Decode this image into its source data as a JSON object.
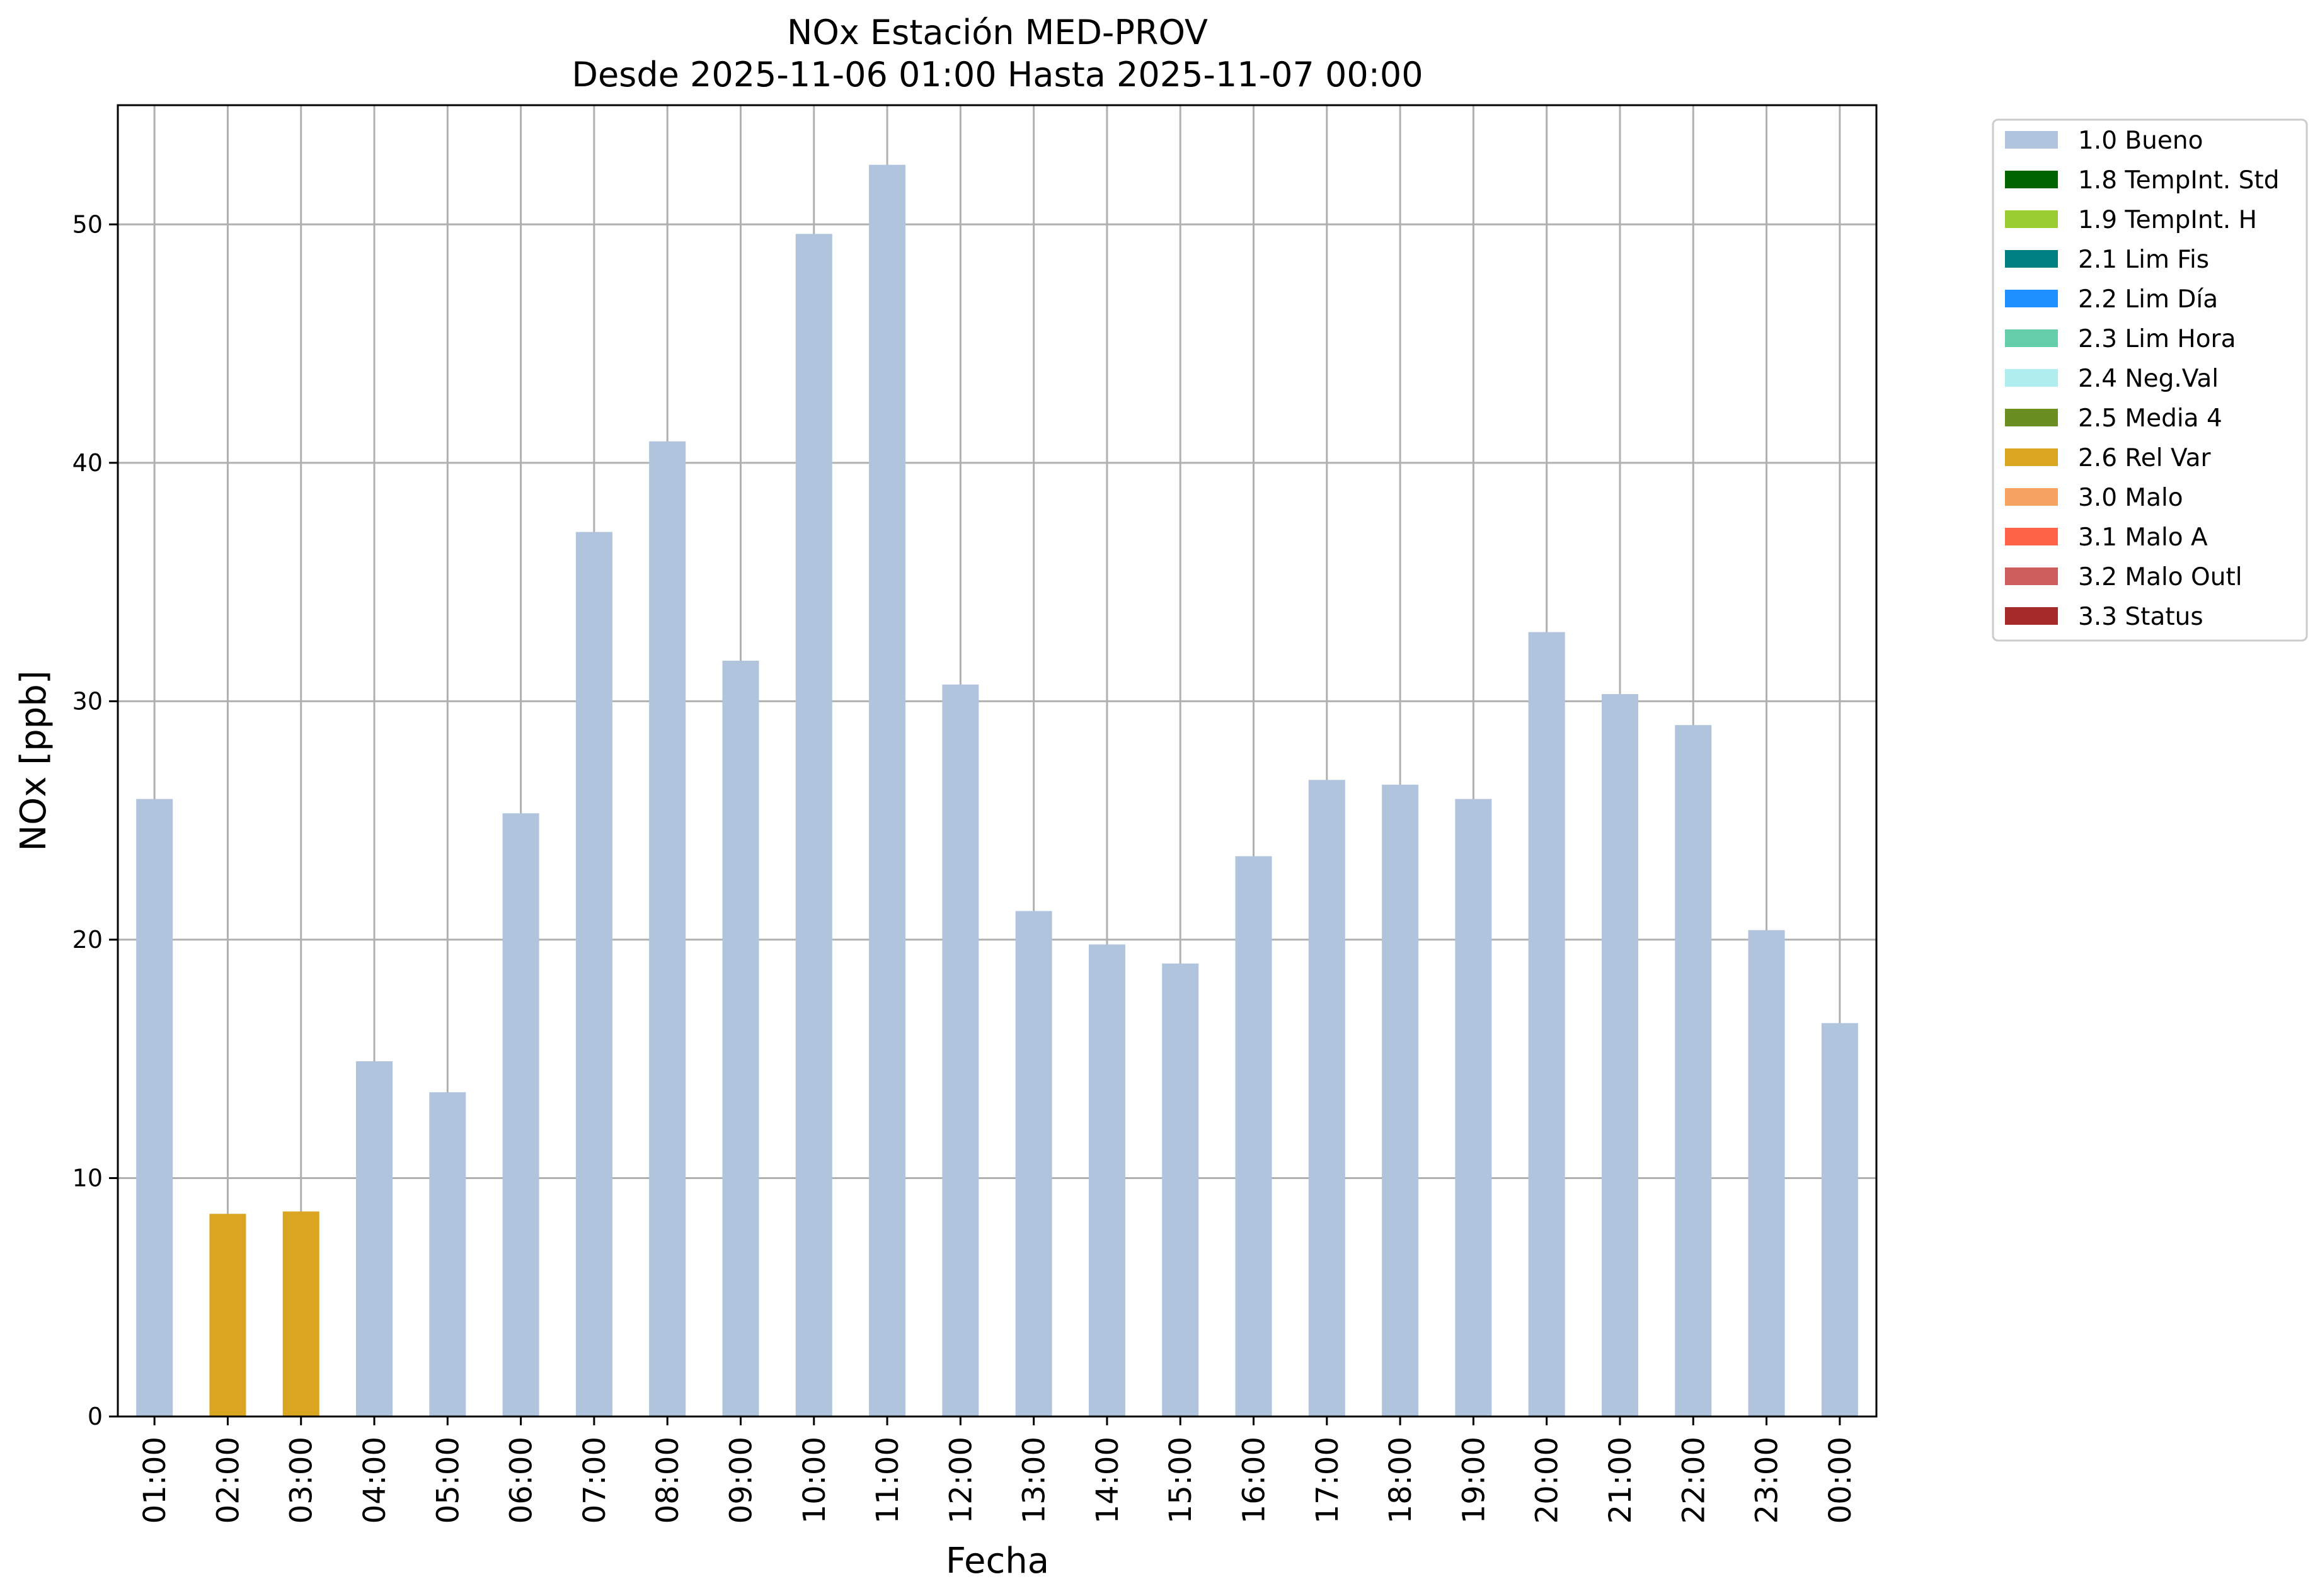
{
  "chart_data": {
    "type": "bar",
    "title": "NOx Estación MED-PROV",
    "subtitle": "Desde 2025-11-06 01:00 Hasta 2025-11-07 00:00",
    "xlabel": "Fecha",
    "ylabel": "NOx [ppb]",
    "ylim": [
      0,
      55
    ],
    "yticks": [
      0,
      10,
      20,
      30,
      40,
      50
    ],
    "grid": true,
    "legend_position": "outside-top-right",
    "categories": [
      "01:00",
      "02:00",
      "03:00",
      "04:00",
      "05:00",
      "06:00",
      "07:00",
      "08:00",
      "09:00",
      "10:00",
      "11:00",
      "12:00",
      "13:00",
      "14:00",
      "15:00",
      "16:00",
      "17:00",
      "18:00",
      "19:00",
      "20:00",
      "21:00",
      "22:00",
      "23:00",
      "00:00"
    ],
    "values": [
      25.9,
      8.5,
      8.6,
      14.9,
      13.6,
      25.3,
      37.1,
      40.9,
      31.7,
      49.6,
      52.5,
      30.7,
      21.2,
      19.8,
      19.0,
      23.5,
      26.7,
      26.5,
      25.9,
      32.9,
      30.3,
      29.0,
      20.4,
      16.5
    ],
    "flags": [
      "1.0 Bueno",
      "2.6 Rel Var",
      "2.6 Rel Var",
      "1.0 Bueno",
      "1.0 Bueno",
      "1.0 Bueno",
      "1.0 Bueno",
      "1.0 Bueno",
      "1.0 Bueno",
      "1.0 Bueno",
      "1.0 Bueno",
      "1.0 Bueno",
      "1.0 Bueno",
      "1.0 Bueno",
      "1.0 Bueno",
      "1.0 Bueno",
      "1.0 Bueno",
      "1.0 Bueno",
      "1.0 Bueno",
      "1.0 Bueno",
      "1.0 Bueno",
      "1.0 Bueno",
      "1.0 Bueno",
      "1.0 Bueno"
    ],
    "legend": [
      {
        "label": "1.0 Bueno",
        "color": "#b0c4de"
      },
      {
        "label": "1.8 TempInt. Std",
        "color": "#006400"
      },
      {
        "label": "1.9 TempInt. H",
        "color": "#9acd32"
      },
      {
        "label": "2.1 Lim Fis",
        "color": "#008080"
      },
      {
        "label": "2.2 Lim Día",
        "color": "#1e90ff"
      },
      {
        "label": "2.3 Lim Hora",
        "color": "#66cdaa"
      },
      {
        "label": "2.4 Neg.Val",
        "color": "#afeeee"
      },
      {
        "label": "2.5 Media 4",
        "color": "#6b8e23"
      },
      {
        "label": "2.6 Rel Var",
        "color": "#daa520"
      },
      {
        "label": "3.0 Malo",
        "color": "#f4a460"
      },
      {
        "label": "3.1 Malo A",
        "color": "#ff6347"
      },
      {
        "label": "3.2 Malo Outl",
        "color": "#cd5c5c"
      },
      {
        "label": "3.3 Status",
        "color": "#a52a2a"
      }
    ]
  }
}
